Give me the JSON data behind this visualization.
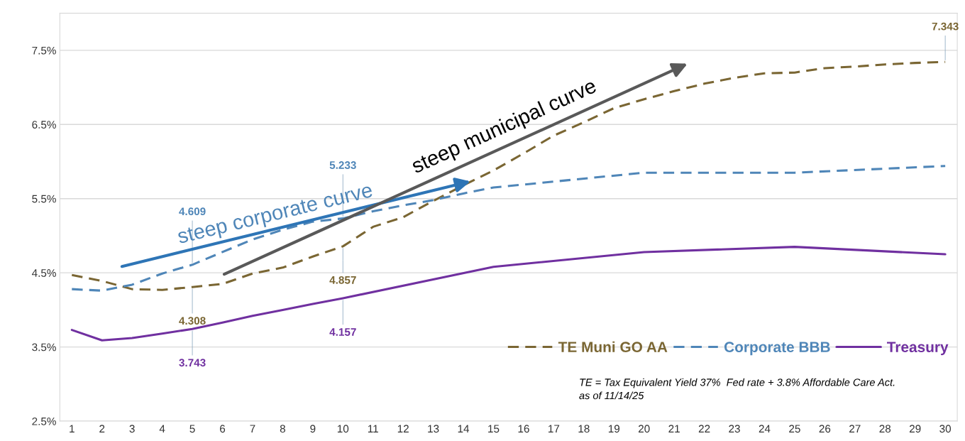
{
  "chart_data": {
    "type": "line",
    "xlim": [
      0.6,
      30.4
    ],
    "xticks": [
      1,
      2,
      3,
      4,
      5,
      6,
      7,
      8,
      9,
      10,
      11,
      12,
      13,
      14,
      15,
      16,
      17,
      18,
      19,
      20,
      21,
      22,
      23,
      24,
      25,
      26,
      27,
      28,
      29,
      30
    ],
    "ylim": [
      2.5,
      8.0
    ],
    "yticks": [
      {
        "value": 2.5,
        "label": "2.5%"
      },
      {
        "value": 3.5,
        "label": "3.5%"
      },
      {
        "value": 4.5,
        "label": "4.5%"
      },
      {
        "value": 5.5,
        "label": "5.5%"
      },
      {
        "value": 6.5,
        "label": "6.5%"
      },
      {
        "value": 7.5,
        "label": "7.5%"
      }
    ],
    "grid": "y",
    "legend": "bottom right",
    "marker": "none",
    "series": [
      {
        "name": "TE Muni GO AA",
        "color": "#7a6633",
        "line_style": "dashed",
        "x": [
          1,
          2,
          3,
          4,
          5,
          6,
          7,
          8,
          9,
          10,
          11,
          12,
          13,
          14,
          15,
          16,
          17,
          18,
          19,
          20,
          21,
          22,
          23,
          24,
          25,
          26,
          27,
          28,
          29,
          30
        ],
        "values": [
          4.47,
          4.39,
          4.28,
          4.27,
          4.308,
          4.35,
          4.49,
          4.57,
          4.72,
          4.857,
          5.12,
          5.25,
          5.47,
          5.68,
          5.88,
          6.11,
          6.35,
          6.53,
          6.72,
          6.84,
          6.95,
          7.05,
          7.13,
          7.19,
          7.2,
          7.26,
          7.28,
          7.31,
          7.33,
          7.343
        ],
        "value_labels": [
          null,
          null,
          null,
          null,
          "4.308",
          null,
          null,
          null,
          null,
          "4.857",
          null,
          null,
          null,
          null,
          null,
          null,
          null,
          null,
          null,
          null,
          null,
          null,
          null,
          null,
          null,
          null,
          null,
          null,
          null,
          "7.343"
        ]
      },
      {
        "name": "Corporate BBB",
        "color": "#4f86b8",
        "line_style": "dashed",
        "x": [
          1,
          2,
          3,
          4,
          5,
          6,
          7,
          8,
          9,
          10,
          11,
          12,
          13,
          14,
          15,
          20,
          25,
          30
        ],
        "values": [
          4.28,
          4.26,
          4.34,
          4.49,
          4.609,
          4.78,
          4.95,
          5.08,
          5.19,
          5.233,
          5.33,
          5.41,
          5.48,
          5.57,
          5.65,
          5.85,
          5.85,
          5.94
        ],
        "value_labels": [
          null,
          null,
          null,
          null,
          "4.609",
          null,
          null,
          null,
          null,
          "5.233",
          null,
          null,
          null,
          null,
          null,
          null,
          null,
          null
        ]
      },
      {
        "name": "Treasury",
        "color": "#7030a0",
        "line_style": "solid",
        "x": [
          1,
          2,
          3,
          4,
          5,
          6,
          7,
          8,
          9,
          10,
          15,
          20,
          25,
          30
        ],
        "values": [
          3.73,
          3.59,
          3.62,
          3.68,
          3.743,
          3.83,
          3.92,
          4.0,
          4.08,
          4.157,
          4.58,
          4.78,
          4.85,
          4.75
        ],
        "value_labels": [
          null,
          null,
          null,
          null,
          "3.743",
          null,
          null,
          null,
          null,
          "4.157",
          null,
          null,
          null,
          null
        ]
      }
    ],
    "annotations": [
      "steep corporate curve",
      "steep municipal curve",
      "TE = Tax Equivalent Yield 37%  Fed rate + 3.8% Affordable Care Act.",
      "as of 11/14/25"
    ]
  }
}
